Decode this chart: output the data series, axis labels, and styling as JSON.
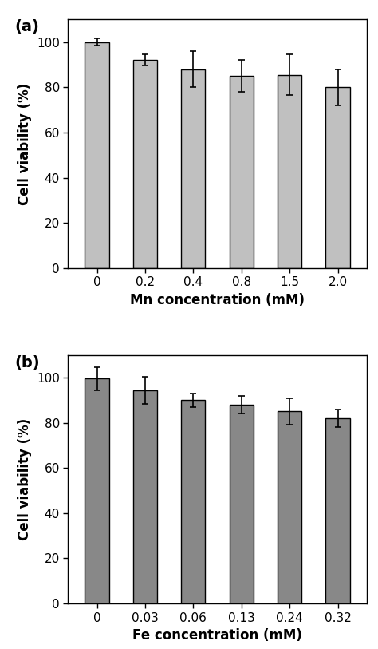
{
  "panel_a": {
    "categories": [
      "0",
      "0.2",
      "0.4",
      "0.8",
      "1.5",
      "2.0"
    ],
    "values": [
      100,
      92,
      88,
      85,
      85.5,
      80
    ],
    "errors": [
      1.5,
      2.5,
      8,
      7,
      9,
      8
    ],
    "bar_color": "#c0c0c0",
    "bar_edgecolor": "#000000",
    "xlabel": "Mn concentration (mM)",
    "ylabel": "Cell viability (%)",
    "ylim": [
      0,
      110
    ],
    "yticks": [
      0,
      20,
      40,
      60,
      80,
      100
    ],
    "label": "(a)"
  },
  "panel_b": {
    "categories": [
      "0",
      "0.03",
      "0.06",
      "0.13",
      "0.24",
      "0.32"
    ],
    "values": [
      99.5,
      94.5,
      90,
      88,
      85,
      82
    ],
    "errors": [
      5,
      6,
      3,
      4,
      6,
      4
    ],
    "bar_color": "#888888",
    "bar_edgecolor": "#000000",
    "xlabel": "Fe concentration (mM)",
    "ylabel": "Cell viability (%)",
    "ylim": [
      0,
      110
    ],
    "yticks": [
      0,
      20,
      40,
      60,
      80,
      100
    ],
    "label": "(b)"
  },
  "figsize": [
    4.74,
    8.13
  ],
  "dpi": 100,
  "bar_width": 0.5,
  "label_fontsize": 14,
  "tick_fontsize": 11,
  "axis_label_fontsize": 12
}
